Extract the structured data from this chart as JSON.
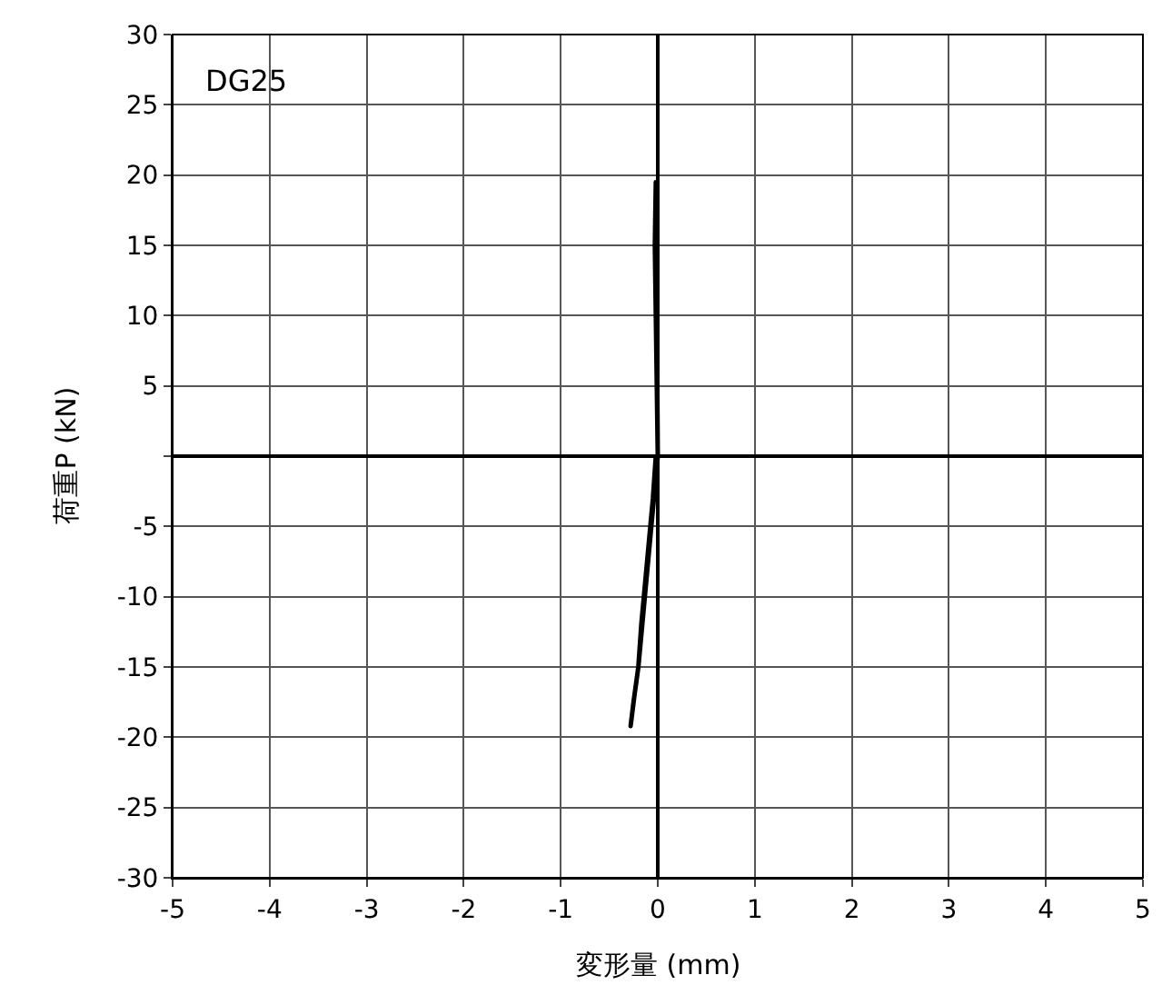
{
  "chart_data": {
    "type": "line",
    "xlabel": "変形量 (mm)",
    "ylabel": "荷重P (kN)",
    "annotations": [
      "DG25"
    ],
    "xlim": [
      -5,
      5
    ],
    "ylim": [
      -30,
      30
    ],
    "xticks": [
      -5,
      -4,
      -3,
      -2,
      -1,
      0,
      1,
      2,
      3,
      4,
      5
    ],
    "yticks": [
      -30,
      -25,
      -20,
      -15,
      -10,
      -5,
      {
        "value": 0,
        "label": null
      },
      5,
      10,
      15,
      20,
      25,
      30
    ],
    "grid": true,
    "marker": "none",
    "line_style": "solid",
    "series": [
      {
        "color": "#000000",
        "x": [
          0,
          -0.01,
          -0.02,
          -0.03,
          -0.02,
          0,
          -0.04,
          -0.08,
          -0.12,
          -0.16,
          -0.2,
          -0.25,
          -0.28,
          -0.24,
          -0.2,
          -0.17,
          -0.13,
          -0.09,
          -0.05,
          -0.02
        ],
        "values": [
          0,
          5,
          10,
          15,
          19.5,
          0,
          -3,
          -6,
          -9,
          -12,
          -15,
          -17.5,
          -19.2,
          -17,
          -15,
          -12,
          -9,
          -6,
          -3,
          0
        ]
      }
    ]
  }
}
